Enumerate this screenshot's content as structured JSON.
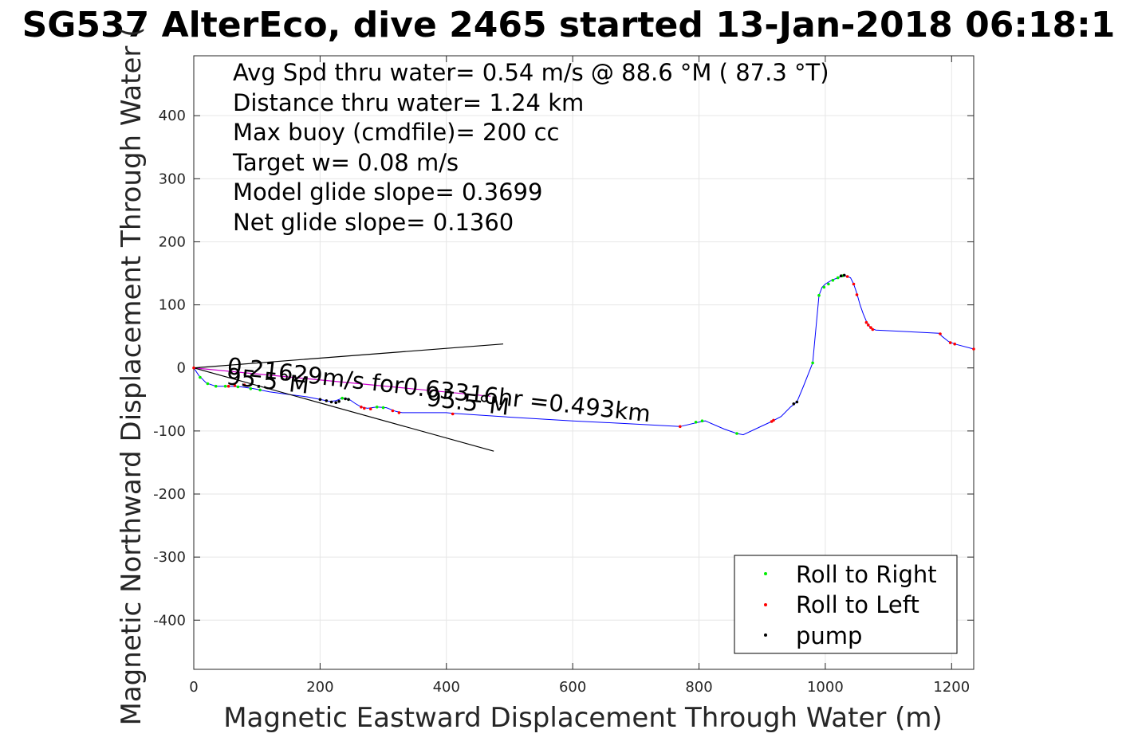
{
  "chart_data": {
    "type": "line",
    "title": "SG537 AlterEco, dive 2465 started 13-Jan-2018 06:18:1",
    "xlabel": "Magnetic Eastward Displacement Through Water (m)",
    "ylabel": "Magnetic Northward Displacement Through Water (",
    "xlim": [
      0,
      1235
    ],
    "ylim": [
      -478,
      495
    ],
    "xticks": [
      0,
      200,
      400,
      600,
      800,
      1000,
      1200
    ],
    "yticks": [
      -400,
      -300,
      -200,
      -100,
      0,
      100,
      200,
      300,
      400
    ],
    "grid": true,
    "legend_position": "bottom-right",
    "stats_text": [
      "Avg Spd thru water=  0.54 m/s @  88.6 °M ( 87.3 °T)",
      "Distance thru water=  1.24 km",
      "Max buoy (cmdfile)= 200 cc",
      "Target w= 0.08 m/s",
      "Model glide slope= 0.3699",
      "Net glide slope= 0.1360"
    ],
    "annotations": {
      "current": "0.21629m/s for0.63316hr =0.493km",
      "heading_a": "95.5°M",
      "heading_b": "95.5°M"
    },
    "series": [
      {
        "name": "track",
        "color": "#0000ff",
        "x": [
          0,
          8,
          20,
          35,
          55,
          75,
          95,
          120,
          150,
          180,
          200,
          215,
          225,
          235,
          245,
          255,
          265,
          275,
          290,
          305,
          320,
          330,
          400,
          410,
          500,
          600,
          700,
          770,
          800,
          810,
          840,
          860,
          870,
          900,
          915,
          930,
          945,
          955,
          965,
          980,
          990,
          995,
          1000,
          1010,
          1020,
          1030,
          1040,
          1045,
          1050,
          1055,
          1060,
          1065,
          1070,
          1075,
          1080,
          1180,
          1185,
          1195,
          1205,
          1235
        ],
        "y": [
          0,
          -12,
          -24,
          -29,
          -29,
          -30,
          -33,
          -38,
          -42,
          -46,
          -50,
          -53,
          -52,
          -48,
          -49,
          -56,
          -62,
          -64,
          -62,
          -63,
          -69,
          -71,
          -71,
          -72,
          -78,
          -84,
          -89,
          -93,
          -86,
          -84,
          -97,
          -104,
          -106,
          -92,
          -85,
          -77,
          -62,
          -54,
          -30,
          8,
          115,
          128,
          133,
          139,
          143,
          147,
          143,
          133,
          118,
          100,
          86,
          74,
          66,
          62,
          60,
          55,
          50,
          42,
          38,
          30
        ]
      },
      {
        "name": "current-line",
        "color": "#cc00cc",
        "x": [
          0,
          470
        ],
        "y": [
          0,
          -45
        ]
      },
      {
        "name": "heading-upper",
        "color": "#000000",
        "x": [
          0,
          490
        ],
        "y": [
          0,
          38
        ]
      },
      {
        "name": "heading-lower",
        "color": "#000000",
        "x": [
          0,
          475
        ],
        "y": [
          0,
          -132
        ]
      },
      {
        "name": "Roll to Right",
        "color": "#00ee00",
        "x": [
          10,
          22,
          35,
          50,
          70,
          90,
          105,
          235,
          245,
          290,
          300,
          795,
          805,
          860,
          980,
          990,
          998,
          1005,
          1012,
          1020,
          1027
        ],
        "y": [
          -15,
          -25,
          -29,
          -29,
          -30,
          -33,
          -35,
          -48,
          -50,
          -62,
          -63,
          -86,
          -84,
          -104,
          8,
          115,
          128,
          133,
          139,
          143,
          146
        ]
      },
      {
        "name": "Roll to Left",
        "color": "#ff0000",
        "x": [
          0,
          55,
          65,
          80,
          265,
          270,
          280,
          315,
          325,
          410,
          770,
          915,
          918,
          1035,
          1045,
          1050,
          1065,
          1068,
          1072,
          1075,
          1182,
          1198,
          1205,
          1235
        ],
        "y": [
          0,
          -29,
          -28,
          -27,
          -62,
          -64,
          -65,
          -68,
          -71,
          -73,
          -93,
          -85,
          -83,
          145,
          133,
          116,
          72,
          68,
          64,
          61,
          54,
          40,
          38,
          30
        ]
      },
      {
        "name": "pump",
        "color": "#000000",
        "x": [
          200,
          210,
          218,
          225,
          230,
          240,
          245,
          950,
          955,
          1025,
          1030
        ],
        "y": [
          -50,
          -52,
          -54,
          -55,
          -53,
          -49,
          -50,
          -57,
          -54,
          146,
          147
        ]
      }
    ]
  }
}
